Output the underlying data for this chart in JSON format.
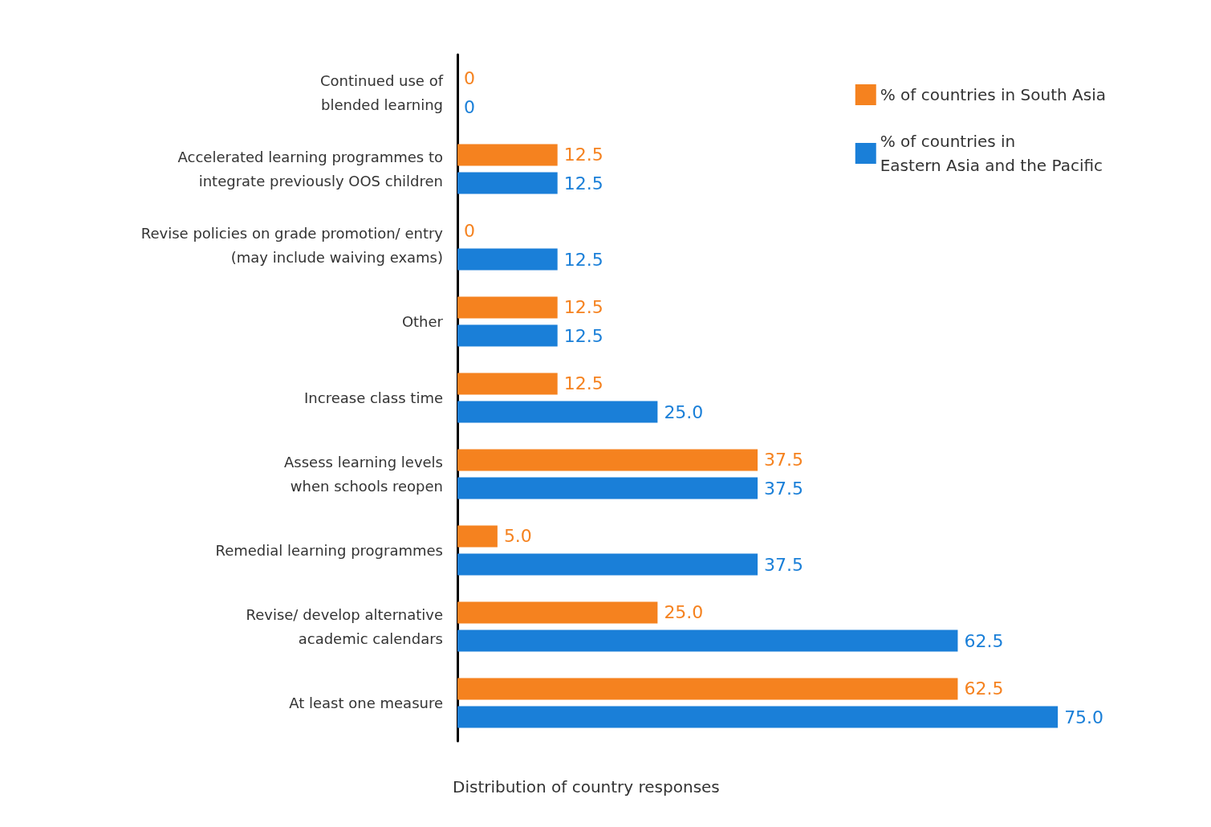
{
  "chart_data": {
    "type": "bar",
    "orientation": "horizontal",
    "xlabel": "Distribution of country responses",
    "legend": "top right",
    "categories": [
      "Continued use of\nblended learning",
      "Accelerated learning programmes to\nintegrate previously OOS children",
      "Revise policies on grade promotion/ entry\n(may include waiving exams)",
      "Other",
      "Increase class time",
      "Assess learning levels\nwhen schools reopen",
      "Remedial learning programmes",
      "Revise/ develop alternative\nacademic calendars",
      "At least one measure"
    ],
    "series": [
      {
        "name": "% of countries in South Asia",
        "color": "#f5821f",
        "values": [
          0,
          12.5,
          0,
          12.5,
          12.5,
          37.5,
          5.0,
          25.0,
          62.5
        ],
        "value_labels": [
          "0",
          "12.5",
          "0",
          "12.5",
          "12.5",
          "37.5",
          "5.0",
          "25.0",
          "62.5"
        ]
      },
      {
        "name": "% of countries in\nEastern Asia and the Pacific",
        "color": "#1a7fd8",
        "values": [
          0,
          12.5,
          12.5,
          12.5,
          25.0,
          37.5,
          37.5,
          62.5,
          75.0
        ],
        "value_labels": [
          "0",
          "12.5",
          "12.5",
          "12.5",
          "25.0",
          "37.5",
          "37.5",
          "62.5",
          "75.0"
        ]
      }
    ]
  }
}
